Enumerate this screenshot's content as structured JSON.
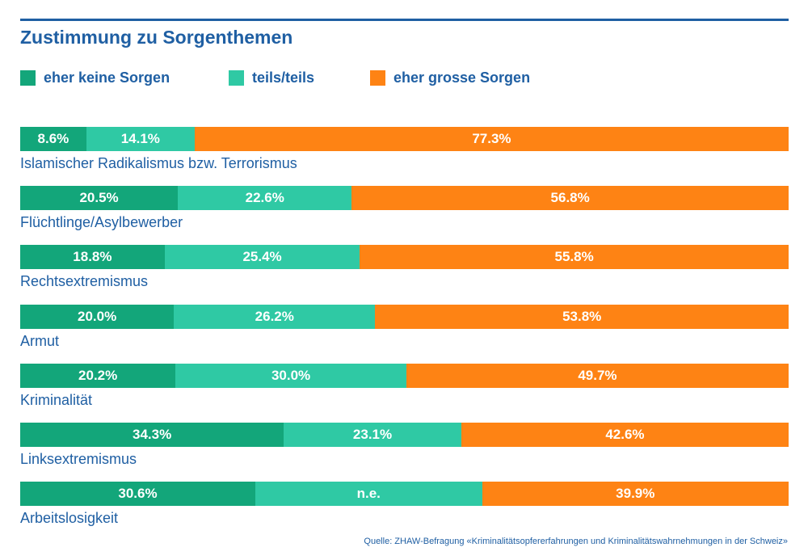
{
  "title": "Zustimmung zu Sorgenthemen",
  "source": "Quelle: ZHAW-Befragung «Kriminalitätsopfererfahrungen und Kriminalitätswahrnehmungen in der Schweiz»",
  "colors": {
    "dark_green": "#13a67a",
    "light_green": "#2fc9a4",
    "orange": "#fe8314",
    "title_blue": "#1f5fa3"
  },
  "chart_data": {
    "type": "bar",
    "orientation": "horizontal",
    "stacked": true,
    "title": "Zustimmung zu Sorgenthemen",
    "legend_position": "top",
    "categories": [
      "Islamischer Radikalismus bzw. Terrorismus",
      "Flüchtlinge/Asylbewerber",
      "Rechtsextremismus",
      "Armut",
      "Kriminalität",
      "Linksextremismus",
      "Arbeitslosigkeit"
    ],
    "series": [
      {
        "name": "eher keine Sorgen",
        "color": "#13a67a",
        "values": [
          8.6,
          20.5,
          18.8,
          20.0,
          20.2,
          34.3,
          30.6
        ],
        "labels": [
          "8.6%",
          "20.5%",
          "18.8%",
          "20.0%",
          "20.2%",
          "34.3%",
          "30.6%"
        ]
      },
      {
        "name": "teils/teils",
        "color": "#2fc9a4",
        "values": [
          14.1,
          22.6,
          25.4,
          26.2,
          30.0,
          23.1,
          29.5
        ],
        "labels": [
          "14.1%",
          "22.6%",
          "25.4%",
          "26.2%",
          "30.0%",
          "23.1%",
          "n.e."
        ]
      },
      {
        "name": "eher grosse Sorgen",
        "color": "#fe8314",
        "values": [
          77.3,
          56.8,
          55.8,
          53.8,
          49.7,
          42.6,
          39.9
        ],
        "labels": [
          "77.3%",
          "56.8%",
          "55.8%",
          "53.8%",
          "49.7%",
          "42.6%",
          "39.9%"
        ]
      }
    ],
    "xlim": [
      0,
      100
    ],
    "grid": false
  }
}
